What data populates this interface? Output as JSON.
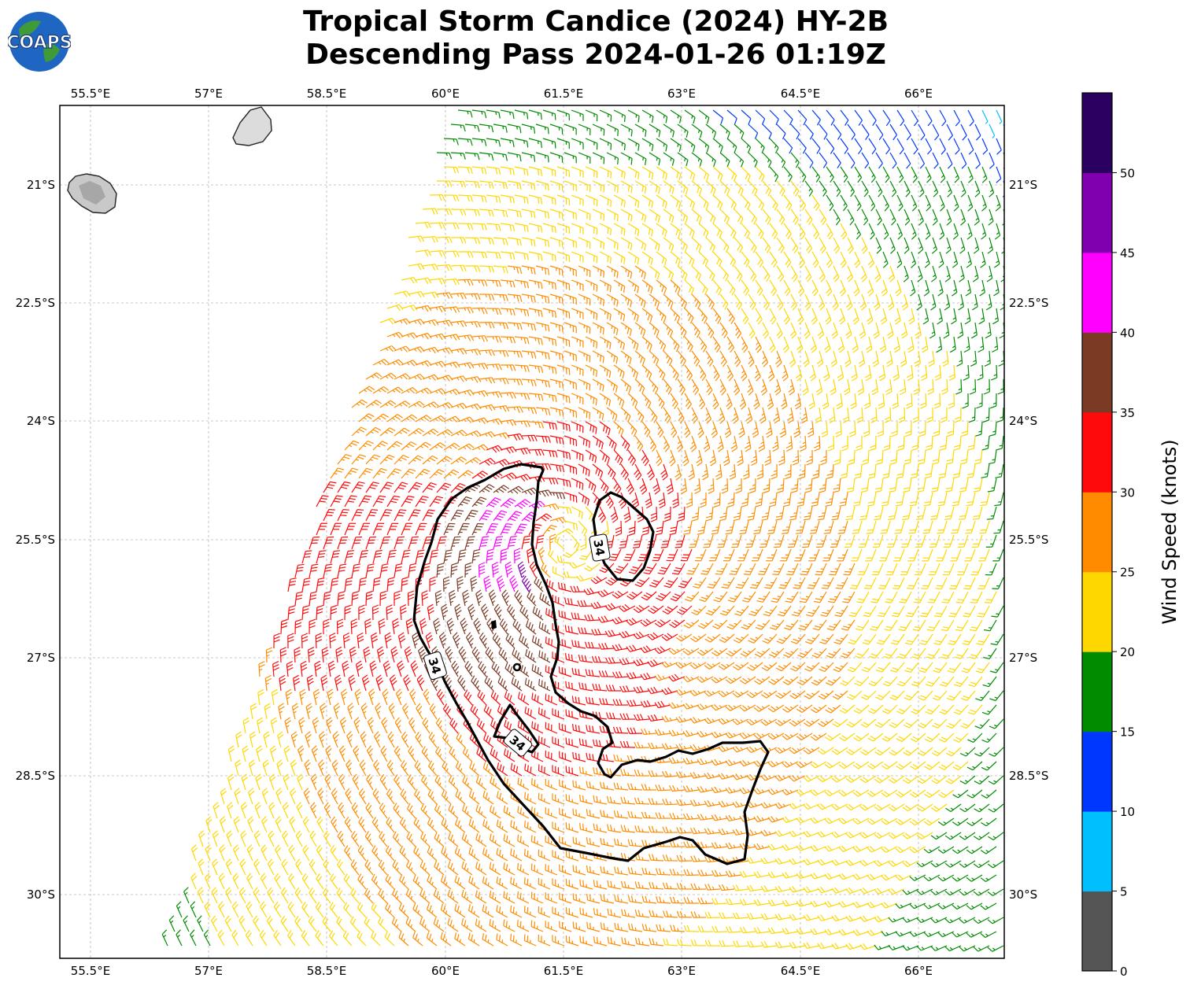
{
  "title": {
    "line1": "Tropical Storm Candice (2024) HY-2B",
    "line2": "Descending Pass 2024-01-26 01:19Z"
  },
  "logo": {
    "text": "COAPS"
  },
  "map": {
    "lon_ticks": [
      "55.5°E",
      "57°E",
      "58.5°E",
      "60°E",
      "61.5°E",
      "63°E",
      "64.5°E",
      "66°E"
    ],
    "lat_ticks": [
      "21°S",
      "22.5°S",
      "24°S",
      "25.5°S",
      "27°S",
      "28.5°S",
      "30°S"
    ],
    "contour_label": "34",
    "wind_barb_colors_by_speed": {
      "0-5": "#555555",
      "5-10": "#00bfff",
      "10-15": "#0037ff",
      "15-20": "#008c00",
      "20-25": "#ffd700",
      "25-30": "#ff8c00",
      "30-35": "#ff0a0a",
      "35-40": "#7b3a23",
      "40-45": "#ff00ff",
      "45-50": "#8000b0",
      "50+": "#2a0060"
    }
  },
  "colorbar": {
    "label": "Wind Speed (knots)",
    "ticks": [
      "0",
      "5",
      "10",
      "15",
      "20",
      "25",
      "30",
      "35",
      "40",
      "45",
      "50"
    ],
    "colors": [
      "#555555",
      "#00bfff",
      "#0037ff",
      "#008c00",
      "#ffd700",
      "#ff8c00",
      "#ff0a0a",
      "#7b3a23",
      "#ff00ff",
      "#8000b0",
      "#2a0060"
    ]
  }
}
